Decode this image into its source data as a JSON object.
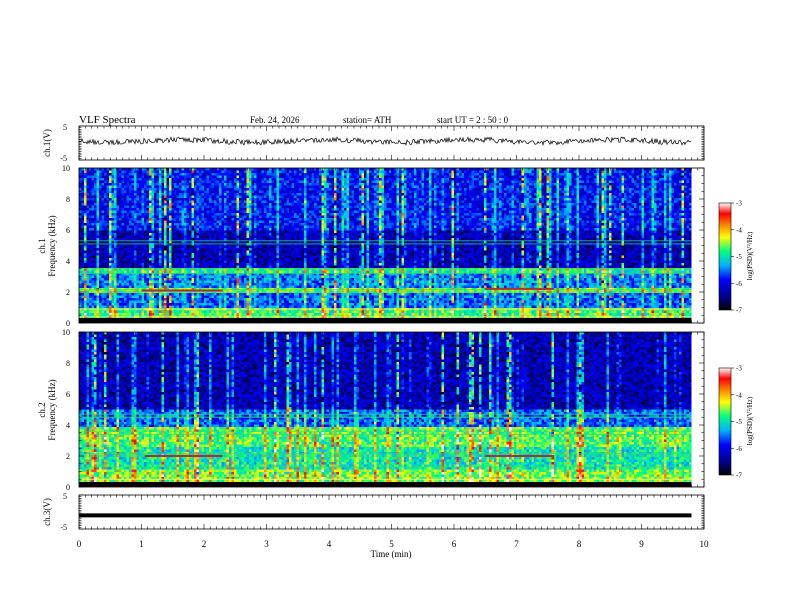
{
  "header": {
    "title": "VLF  Spectra",
    "date": "Feb. 24, 2026",
    "station": "station= ATH",
    "start": "start  UT  =   2  : 50 : 0"
  },
  "chart_data": [
    {
      "type": "line",
      "name": "ch1-waveform",
      "ylabel": "ch.1(V)",
      "ylim": [
        -5,
        5
      ],
      "yticks": [
        "5",
        "-5"
      ],
      "xlim": [
        0,
        10
      ],
      "baseline": 0.6
    },
    {
      "type": "heatmap",
      "name": "ch1-spectrogram",
      "ylabel": "ch.1\nFrequency  (kHz)",
      "ylim": [
        0,
        10
      ],
      "yticks": [
        "0",
        "2",
        "4",
        "6",
        "8",
        "10"
      ],
      "xlim": [
        0,
        10
      ],
      "data_end_min": 9.8,
      "colorbar": {
        "label": "log(PSD)(V²/Hz)",
        "range": [
          -7,
          -3
        ],
        "ticks": [
          "-3",
          "-4",
          "-5",
          "-6",
          "-7"
        ]
      },
      "dominant_level_by_band": [
        {
          "khz": [
            0,
            0.3
          ],
          "level": -3.2
        },
        {
          "khz": [
            0.3,
            1.0
          ],
          "level": -4.8
        },
        {
          "khz": [
            1.0,
            2.0
          ],
          "level": -5.6
        },
        {
          "khz": [
            2.0,
            2.2
          ],
          "level": -4.6
        },
        {
          "khz": [
            2.2,
            3.2
          ],
          "level": -5.5
        },
        {
          "khz": [
            3.2,
            3.6
          ],
          "level": -4.9
        },
        {
          "khz": [
            3.6,
            6.0
          ],
          "level": -6.3
        },
        {
          "khz": [
            6.0,
            10.0
          ],
          "level": -5.9
        }
      ],
      "horizontal_lines_khz": [
        0.4,
        0.9,
        2.0,
        2.15,
        3.2,
        3.5,
        5.1,
        5.3
      ],
      "tones": [
        {
          "from_min": 1.0,
          "to_min": 2.3,
          "khz": 2.1
        },
        {
          "from_min": 6.5,
          "to_min": 7.6,
          "khz": 2.2
        }
      ]
    },
    {
      "type": "heatmap",
      "name": "ch2-spectrogram",
      "ylabel": "ch.2\nFrequency  (kHz)",
      "ylim": [
        0,
        10
      ],
      "yticks": [
        "0",
        "2",
        "4",
        "6",
        "8",
        "10"
      ],
      "xlim": [
        0,
        10
      ],
      "data_end_min": 9.8,
      "colorbar": {
        "label": "log(PSD)(V²/Hz)",
        "range": [
          -7,
          -3
        ],
        "ticks": [
          "-3",
          "-4",
          "-5",
          "-6",
          "-7"
        ]
      },
      "dominant_level_by_band": [
        {
          "khz": [
            0,
            0.3
          ],
          "level": -3.2
        },
        {
          "khz": [
            0.3,
            1.2
          ],
          "level": -4.6
        },
        {
          "khz": [
            1.2,
            2.6
          ],
          "level": -5.0
        },
        {
          "khz": [
            2.6,
            3.8
          ],
          "level": -4.7
        },
        {
          "khz": [
            3.8,
            5.0
          ],
          "level": -5.6
        },
        {
          "khz": [
            5.0,
            10.0
          ],
          "level": -6.3
        }
      ],
      "horizontal_lines_khz": [
        0.5,
        1.3,
        2.0,
        2.15,
        3.4,
        3.6,
        4.5,
        4.7
      ],
      "tones": [
        {
          "from_min": 1.05,
          "to_min": 2.3,
          "khz": 2.0
        },
        {
          "from_min": 6.5,
          "to_min": 7.6,
          "khz": 2.0
        }
      ]
    },
    {
      "type": "line",
      "name": "ch3-waveform",
      "ylabel": "ch.3(V)",
      "ylim": [
        -5,
        5
      ],
      "yticks": [
        "5",
        "-5"
      ],
      "xlim": [
        0,
        10
      ],
      "baseline": -1.0,
      "xticks": [
        "0",
        "1",
        "2",
        "3",
        "4",
        "5",
        "6",
        "7",
        "8",
        "9",
        "10"
      ],
      "xlabel": "Time  (min)"
    }
  ]
}
